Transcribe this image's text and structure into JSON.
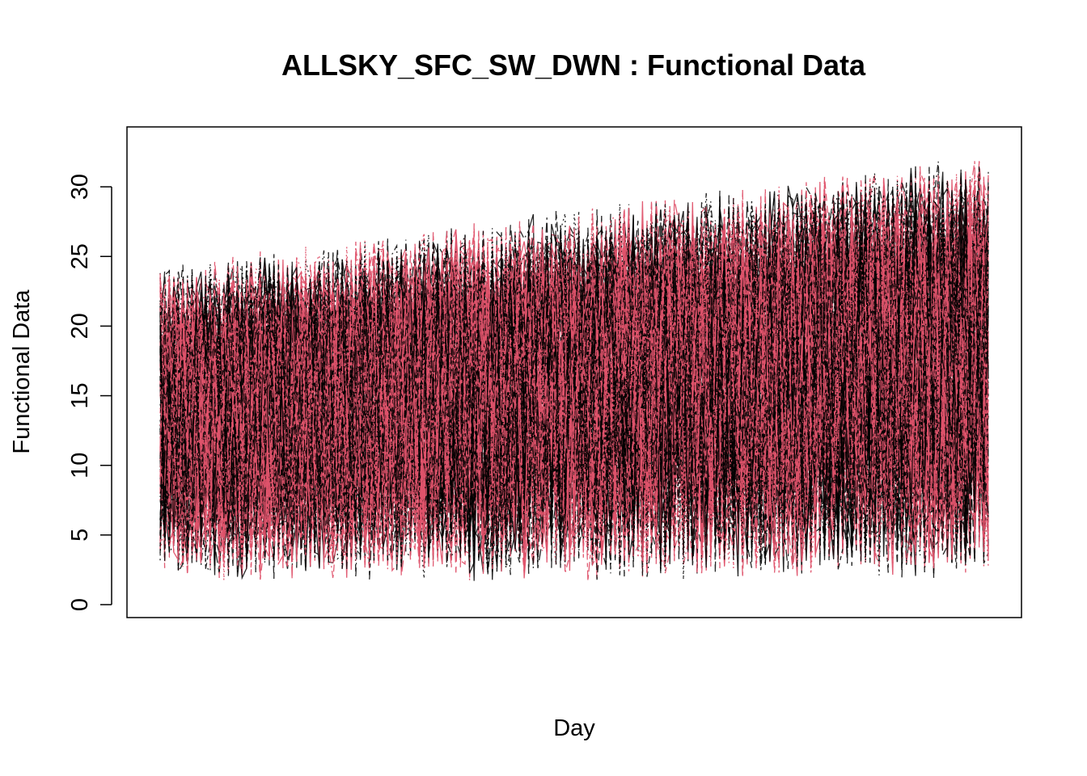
{
  "chart_data": {
    "type": "line",
    "title": "ALLSKY_SFC_SW_DWN : Functional Data",
    "xlabel": "Day",
    "ylabel": "Functional Data",
    "ylim": [
      0,
      33
    ],
    "xlim": [
      1,
      183
    ],
    "yticks": [
      0,
      5,
      10,
      15,
      20,
      25,
      30
    ],
    "x_tick_labels_shown": false,
    "grid": false,
    "legend": "none",
    "series_count": 120,
    "colors": [
      "#000000",
      "#DF536B"
    ],
    "line_styles": [
      "solid",
      "dashed",
      "dotted",
      "dotdash",
      "longdash",
      "twodash"
    ],
    "value_range": [
      0.6,
      33.0
    ],
    "trend": "daily values of roughly 2 to 24 early in the period, rising to roughly 2 to 32 by the end"
  }
}
